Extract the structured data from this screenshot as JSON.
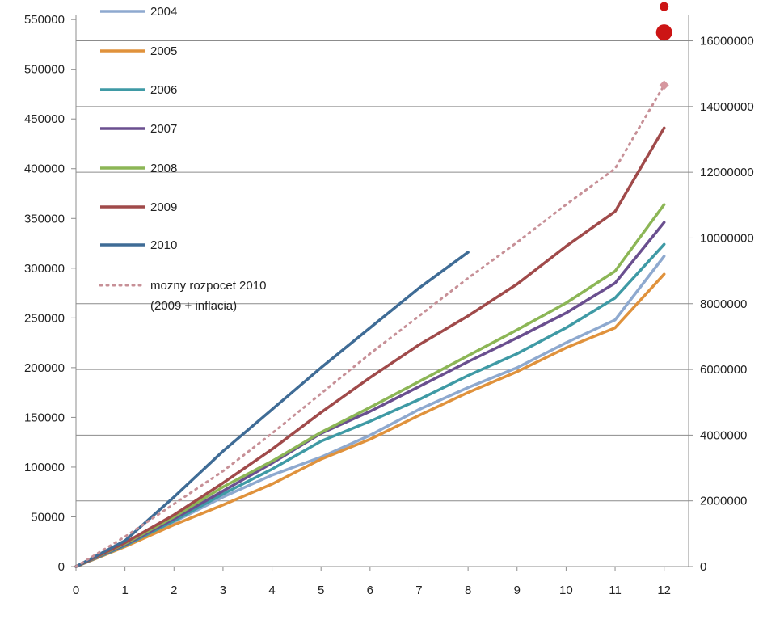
{
  "chart_data": {
    "type": "line",
    "title": "",
    "xlabel": "",
    "ylabel": "",
    "x": [
      0,
      1,
      2,
      3,
      4,
      5,
      6,
      7,
      8,
      9,
      10,
      11,
      12
    ],
    "xlim": [
      0,
      12.5
    ],
    "ylim": [
      0,
      555000
    ],
    "y2lim": [
      0,
      16800000
    ],
    "yticks": [
      0,
      50000,
      100000,
      150000,
      200000,
      250000,
      300000,
      350000,
      400000,
      450000,
      500000,
      550000
    ],
    "y2ticks": [
      0,
      2000000,
      4000000,
      6000000,
      8000000,
      10000000,
      12000000,
      14000000,
      16000000
    ],
    "grid": true,
    "legend_position": "top-left",
    "series": [
      {
        "name": "2004",
        "color": "#8ea9cf",
        "dashed": false,
        "values": [
          0,
          21000,
          45000,
          70000,
          92000,
          110000,
          132000,
          158000,
          180000,
          200000,
          225000,
          248000,
          312000
        ]
      },
      {
        "name": "2005",
        "color": "#e0923c",
        "dashed": false,
        "values": [
          0,
          20000,
          42000,
          62000,
          83000,
          108000,
          128000,
          152000,
          175000,
          196000,
          220000,
          240000,
          294000
        ]
      },
      {
        "name": "2006",
        "color": "#3f9aa5",
        "dashed": false,
        "values": [
          0,
          21000,
          46000,
          73000,
          98000,
          126000,
          146000,
          168000,
          192000,
          214000,
          240000,
          270000,
          324000
        ]
      },
      {
        "name": "2007",
        "color": "#6a4f8f",
        "dashed": false,
        "values": [
          0,
          22000,
          48000,
          76000,
          104000,
          134000,
          156000,
          181000,
          206000,
          230000,
          255000,
          285000,
          346000
        ]
      },
      {
        "name": "2008",
        "color": "#8cb656",
        "dashed": false,
        "values": [
          0,
          23000,
          50000,
          80000,
          106000,
          135000,
          160000,
          186000,
          212000,
          238000,
          265000,
          297000,
          364000
        ]
      },
      {
        "name": "2009",
        "color": "#a04a4a",
        "dashed": false,
        "values": [
          0,
          24000,
          52000,
          84000,
          118000,
          155000,
          190000,
          223000,
          252000,
          284000,
          322000,
          357000,
          441000
        ]
      },
      {
        "name": "2010",
        "color": "#3f6c96",
        "dashed": false,
        "values": [
          0,
          26000,
          70000,
          116000,
          158000,
          200000,
          240000,
          280000,
          316000,
          null,
          null,
          null,
          null
        ]
      },
      {
        "name": "mozny rozpocet 2010\n(2009 + inflacia)",
        "color": "#c79097",
        "dashed": true,
        "values": [
          0,
          30000,
          63000,
          96000,
          134000,
          174000,
          214000,
          252000,
          290000,
          326000,
          364000,
          400000,
          484000
        ]
      }
    ],
    "markers": [
      {
        "x": 12,
        "y": 484000,
        "shape": "diamond",
        "color": "#d6979f"
      },
      {
        "x": 12,
        "y": 537000,
        "shape": "circle-large",
        "color": "#cc1515"
      },
      {
        "x": 12,
        "y": 563000,
        "shape": "circle-small",
        "color": "#cc1515"
      }
    ],
    "legend": {
      "items": [
        "2004",
        "2005",
        "2006",
        "2007",
        "2008",
        "2009",
        "2010"
      ],
      "dashed_label_line1": "mozny rozpocet 2010",
      "dashed_label_line2": "(2009 + inflacia)"
    }
  }
}
